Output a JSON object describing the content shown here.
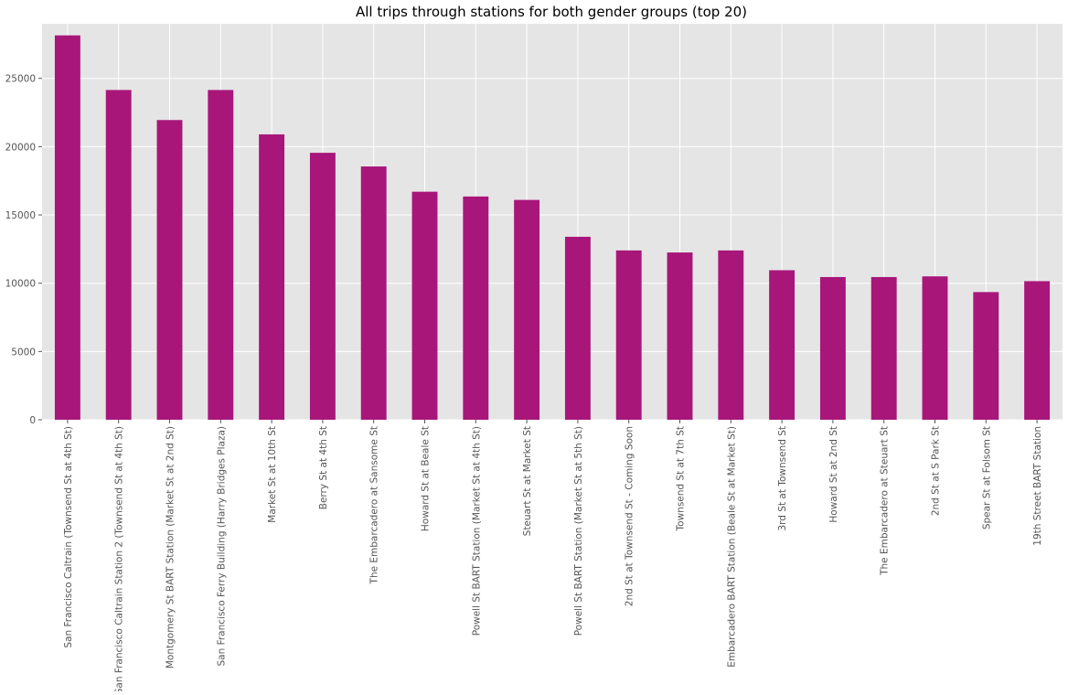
{
  "chart_data": {
    "type": "bar",
    "title": "All trips through stations for both gender groups (top 20)",
    "xlabel": "",
    "ylabel": "",
    "ylim": [
      0,
      29000
    ],
    "yticks": [
      0,
      5000,
      10000,
      15000,
      20000,
      25000
    ],
    "grid": true,
    "legend": "none",
    "colors": {
      "bar": "#a8167a",
      "plot_background": "#e5e5e5",
      "grid": "#ffffff",
      "tick": "#555555"
    },
    "categories": [
      "San Francisco Caltrain (Townsend St at 4th St)",
      "San Francisco Caltrain Station 2  (Townsend St at 4th St)",
      "Montgomery St BART Station (Market St at 2nd St)",
      "San Francisco Ferry Building (Harry Bridges Plaza)",
      "Market St at 10th St",
      "Berry St at 4th St",
      "The Embarcadero at Sansome St",
      "Howard St at Beale St",
      "Powell St BART Station (Market St at 4th St)",
      "Steuart St at Market St",
      "Powell St BART Station (Market St at 5th St)",
      "2nd St at Townsend St - Coming Soon",
      "Townsend St at 7th St",
      "Embarcadero BART Station (Beale St at Market St)",
      "3rd St at Townsend St",
      "Howard St at 2nd St",
      "The Embarcadero at Steuart St",
      "2nd St at S Park St",
      "Spear St at Folsom St",
      "19th Street BART Station"
    ],
    "values": [
      28150,
      24150,
      21950,
      24150,
      20900,
      19550,
      18550,
      16700,
      16350,
      16100,
      13400,
      12400,
      12250,
      12400,
      10950,
      10450,
      10450,
      10500,
      9350,
      10150
    ]
  }
}
